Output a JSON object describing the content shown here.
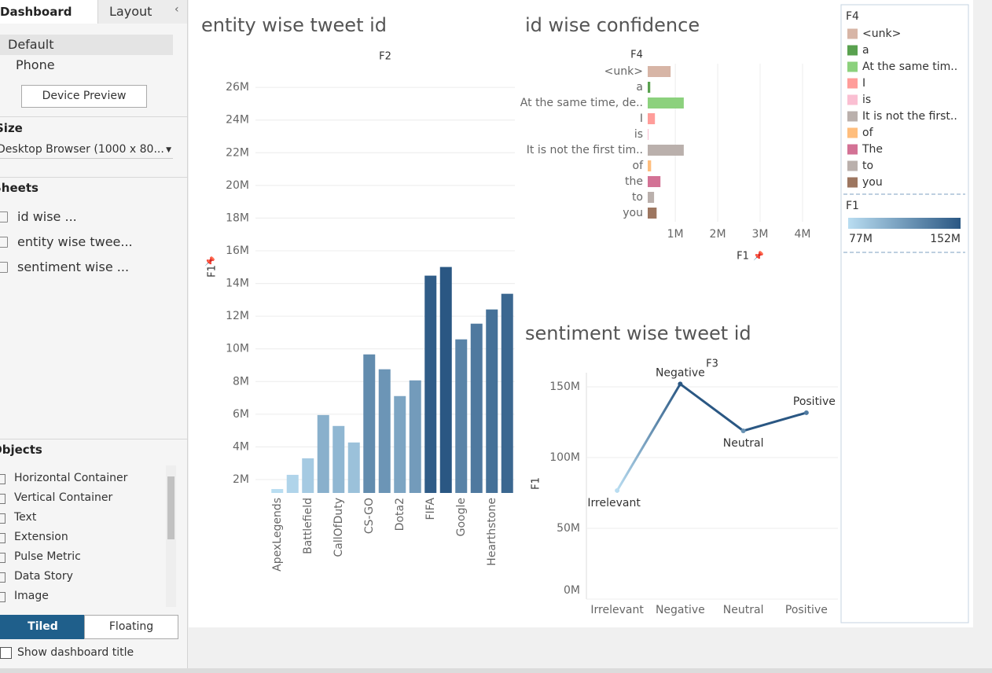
{
  "sidebar": {
    "tabs": [
      "Dashboard",
      "Layout"
    ],
    "devices": [
      "Default",
      "Phone"
    ],
    "device_preview": "Device Preview",
    "size_header": "Size",
    "size_value": "Desktop Browser (1000 x 80...",
    "sheets_header": "Sheets",
    "sheets": [
      "id wise ...",
      "entity wise twee...",
      "sentiment wise ..."
    ],
    "objects_header": "Objects",
    "objects": [
      "Horizontal Container",
      "Vertical Container",
      "Text",
      "Extension",
      "Pulse Metric",
      "Data Story",
      "Image"
    ],
    "layout_buttons": [
      "Tiled",
      "Floating"
    ],
    "show_title": "Show dashboard title"
  },
  "chart_data": [
    {
      "type": "bar",
      "title": "entity wise tweet id",
      "header": "F2",
      "y_label": "F1",
      "categories": [
        "ApexLegends",
        null,
        "Battlefield",
        null,
        "CallOfDuty",
        null,
        "CS-GO",
        null,
        "Dota2",
        null,
        "FIFA",
        null,
        "Google",
        null,
        "Hearthstone",
        null
      ],
      "values": [
        1420000,
        2290000,
        3300000,
        5950000,
        5280000,
        4270000,
        9660000,
        8750000,
        7110000,
        8070000,
        14480000,
        15010000,
        10580000,
        11540000,
        12410000,
        13370000
      ],
      "colors": [
        "#b9ddf1",
        "#2a5783"
      ],
      "ylim": [
        1180000,
        27500000
      ],
      "yticks": [
        {
          "value": 2000000,
          "label": "2M"
        },
        {
          "value": 4000000,
          "label": "4M"
        },
        {
          "value": 6000000,
          "label": "6M"
        },
        {
          "value": 8000000,
          "label": "8M"
        },
        {
          "value": 10000000,
          "label": "10M"
        },
        {
          "value": 12000000,
          "label": "12M"
        },
        {
          "value": 14000000,
          "label": "14M"
        },
        {
          "value": 16000000,
          "label": "16M"
        },
        {
          "value": 18000000,
          "label": "18M"
        },
        {
          "value": 20000000,
          "label": "20M"
        },
        {
          "value": 22000000,
          "label": "22M"
        },
        {
          "value": 24000000,
          "label": "24M"
        },
        {
          "value": 26000000,
          "label": "26M"
        }
      ],
      "grid": true
    },
    {
      "type": "hbar",
      "title": "id wise confidence",
      "header": "F4",
      "x_label": "F1",
      "categories": [
        "<unk>",
        "a",
        "At the same time, de..",
        "I",
        "is",
        "It is not the first tim..",
        "of",
        "the",
        "to",
        "you"
      ],
      "values": [
        890000,
        410000,
        1200000,
        520000,
        370000,
        1200000,
        430000,
        650000,
        500000,
        560000
      ],
      "colors": [
        "#d7b5a6",
        "#59a14f",
        "#8cd17d",
        "#ff9d9a",
        "#fabfd2",
        "#bab0ac",
        "#ffbe7d",
        "#d37295",
        "#bab0ac",
        "#9d7660"
      ],
      "xlim": [
        350000,
        4760000
      ],
      "xticks": [
        {
          "value": 1000000,
          "label": "1M"
        },
        {
          "value": 2000000,
          "label": "2M"
        },
        {
          "value": 3000000,
          "label": "3M"
        },
        {
          "value": 4000000,
          "label": "4M"
        }
      ],
      "grid": true
    },
    {
      "type": "line",
      "title": "sentiment wise tweet id",
      "header": "F3",
      "y_label": "F1",
      "categories": [
        "Irrelevant",
        "Negative",
        "Neutral",
        "Positive"
      ],
      "values": [
        76700000,
        152000000,
        118900000,
        131700000
      ],
      "colors": [
        "#b9ddf1",
        "#2a5783"
      ],
      "ylim": [
        0,
        160000000
      ],
      "yticks": [
        {
          "value": 0,
          "label": "0M"
        },
        {
          "value": 50000000,
          "label": "50M"
        },
        {
          "value": 100000000,
          "label": "100M"
        },
        {
          "value": 150000000,
          "label": "150M"
        }
      ],
      "grid": true
    }
  ],
  "legends": {
    "color_title": "F4",
    "items": [
      "<unk>",
      "a",
      "At the same tim..",
      "I",
      "is",
      "It is not the first..",
      "of",
      "The",
      "to",
      "you"
    ],
    "gradient_title": "F1",
    "gradient_range": [
      {
        "value": 77000000,
        "label": "77M"
      },
      {
        "value": 152000000,
        "label": "152M"
      }
    ],
    "gradient_colors": [
      "#b9ddf1",
      "#2a5783"
    ]
  }
}
